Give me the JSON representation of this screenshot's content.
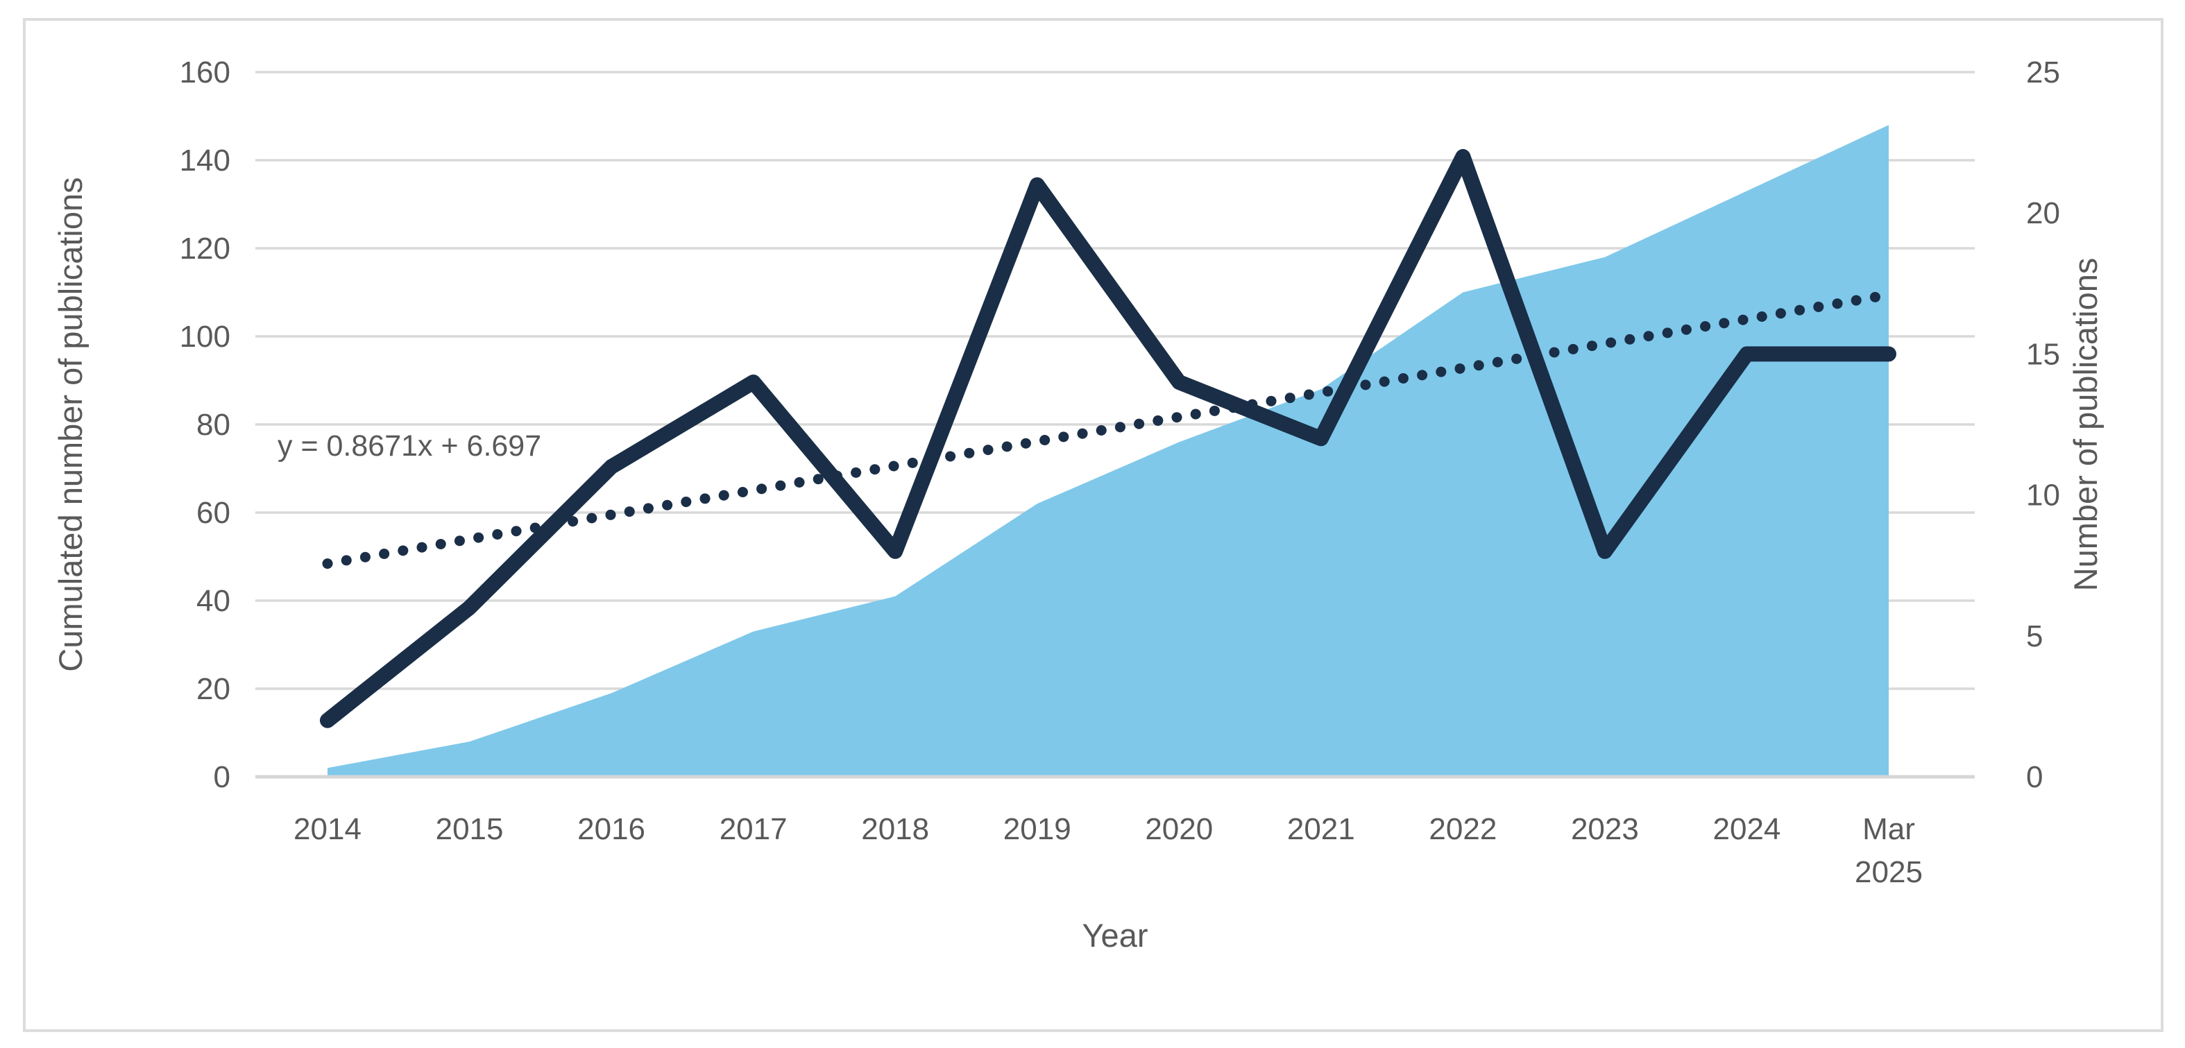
{
  "chart_data": {
    "type": "area",
    "subtype": "combo-area-line-with-trendline",
    "categories": [
      "2014",
      "2015",
      "2016",
      "2017",
      "2018",
      "2019",
      "2020",
      "2021",
      "2022",
      "2023",
      "2024",
      "Mar 2025"
    ],
    "series": [
      {
        "name": "Cumulated number of publications",
        "type": "area",
        "axis": "left",
        "values": [
          2,
          8,
          19,
          33,
          41,
          62,
          76,
          88,
          110,
          118,
          133,
          148
        ],
        "color": "#7fc8ea"
      },
      {
        "name": "Number of publications",
        "type": "line",
        "axis": "right",
        "values": [
          2,
          6,
          11,
          14,
          8,
          21,
          14,
          12,
          22,
          8,
          15,
          15
        ],
        "color": "#1a2e47"
      },
      {
        "name": "Linear trendline",
        "type": "dotted-trendline",
        "axis": "right",
        "slope": 0.8671,
        "intercept": 6.697,
        "x_index_range": [
          1,
          12
        ],
        "color": "#1a2e47"
      }
    ],
    "left_axis": {
      "title": "Cumulated number of publications",
      "min": 0,
      "max": 160,
      "step": 20,
      "tick_labels": [
        "0",
        "20",
        "40",
        "60",
        "80",
        "100",
        "120",
        "140",
        "160"
      ]
    },
    "right_axis": {
      "title": "Number of publications",
      "min": 0,
      "max": 25,
      "step": 5,
      "tick_labels": [
        "0",
        "5",
        "10",
        "15",
        "20",
        "25"
      ]
    },
    "x_axis": {
      "title": "Year"
    },
    "annotation": "y = 0.8671x + 6.697",
    "grid": true,
    "legend": "none",
    "colors": {
      "area_fill": "#7fc8ea",
      "line_stroke": "#1a2e47",
      "trendline_stroke": "#1a2e47",
      "gridline": "#d9d9d9",
      "axis_line": "#d6d6d6",
      "text": "#595959",
      "frame_border": "#dcdcdc",
      "background": "#ffffff"
    }
  }
}
